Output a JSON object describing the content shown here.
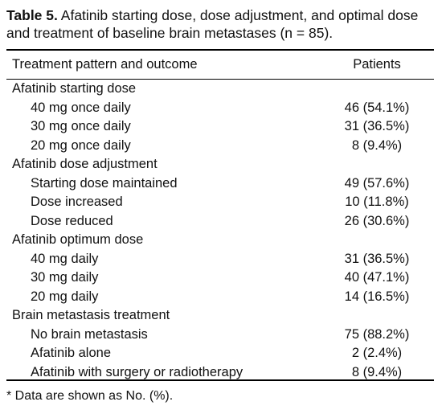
{
  "caption": {
    "label": "Table 5.",
    "text": "Afatinib starting dose, dose adjustment, and optimal dose and treatment of baseline brain metastases (n = 85)."
  },
  "table": {
    "columns": [
      "Treatment pattern and outcome",
      "Patients"
    ],
    "sections": [
      {
        "title": "Afatinib starting dose",
        "rows": [
          [
            "40 mg once daily",
            "46 (54.1%)"
          ],
          [
            "30 mg once daily",
            "31 (36.5%)"
          ],
          [
            "20 mg once daily",
            "8 (9.4%)"
          ]
        ]
      },
      {
        "title": "Afatinib dose adjustment",
        "rows": [
          [
            "Starting dose maintained",
            "49 (57.6%)"
          ],
          [
            "Dose increased",
            "10 (11.8%)"
          ],
          [
            "Dose reduced",
            "26 (30.6%)"
          ]
        ]
      },
      {
        "title": "Afatinib optimum dose",
        "rows": [
          [
            "40 mg daily",
            "31 (36.5%)"
          ],
          [
            "30 mg daily",
            "40 (47.1%)"
          ],
          [
            "20 mg daily",
            "14 (16.5%)"
          ]
        ]
      },
      {
        "title": "Brain metastasis treatment",
        "rows": [
          [
            "No brain metastasis",
            "75 (88.2%)"
          ],
          [
            "Afatinib alone",
            "2 (2.4%)"
          ],
          [
            "Afatinib with surgery or radiotherapy",
            "8 (9.4%)"
          ]
        ]
      }
    ]
  },
  "footnote": "* Data are shown as No. (%)."
}
